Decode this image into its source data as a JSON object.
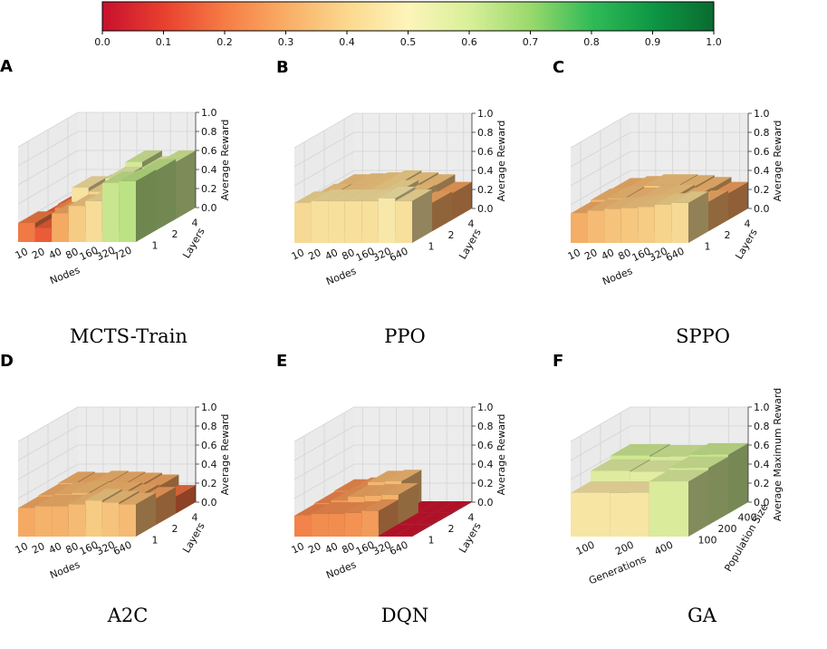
{
  "colorbar": {
    "ticks": [
      "0.0",
      "0.1",
      "0.2",
      "0.3",
      "0.4",
      "0.5",
      "0.6",
      "0.7",
      "0.8",
      "0.9",
      "1.0"
    ],
    "stops": [
      "#c8102e",
      "#e8402e",
      "#f67c45",
      "#f9ad65",
      "#fbd88e",
      "#fdf5b9",
      "#d8ef99",
      "#9ad96c",
      "#31bb57",
      "#0d9744",
      "#0a6b30"
    ]
  },
  "chart_data": [
    {
      "type": "bar3d",
      "letter": "A",
      "caption": "MCTS-Train",
      "xlabel": "Nodes",
      "ylabel": "Layers",
      "zlabel": "Average Reward",
      "xticks": [
        "10",
        "20",
        "40",
        "80",
        "160",
        "320",
        "720"
      ],
      "yticks": [
        "1",
        "2",
        "4"
      ],
      "zticks": [
        "0.0",
        "0.2",
        "0.4",
        "0.6",
        "0.8",
        "1.0"
      ],
      "zlim": [
        0,
        1
      ],
      "values": [
        [
          0.2,
          0.15,
          0.3,
          0.38,
          0.43,
          0.62,
          0.64
        ],
        [
          0.15,
          0.24,
          0.45,
          0.41,
          0.55,
          0.5,
          0.63
        ],
        [
          0.16,
          0.16,
          0.35,
          0.4,
          0.6,
          0.54,
          0.6
        ]
      ]
    },
    {
      "type": "bar3d",
      "letter": "B",
      "caption": "PPO",
      "xlabel": "Nodes",
      "ylabel": "Layers",
      "zlabel": "Average Reward",
      "xticks": [
        "10",
        "20",
        "40",
        "80",
        "160",
        "320",
        "640"
      ],
      "yticks": [
        "1",
        "2",
        "4"
      ],
      "zticks": [
        "0.0",
        "0.2",
        "0.4",
        "0.6",
        "0.8",
        "1.0"
      ],
      "zlim": [
        0,
        1
      ],
      "values": [
        [
          0.42,
          0.44,
          0.44,
          0.44,
          0.44,
          0.47,
          0.44
        ],
        [
          0.38,
          0.37,
          0.38,
          0.4,
          0.42,
          0.37,
          0.3
        ],
        [
          0.36,
          0.37,
          0.38,
          0.4,
          0.38,
          0.36,
          0.28
        ]
      ]
    },
    {
      "type": "bar3d",
      "letter": "C",
      "caption": "SPPO",
      "xlabel": "Nodes",
      "ylabel": "Layers",
      "zlabel": "Average Reward",
      "xticks": [
        "10",
        "20",
        "40",
        "80",
        "160",
        "320",
        "640"
      ],
      "yticks": [
        "1",
        "2",
        "4"
      ],
      "zticks": [
        "0.0",
        "0.2",
        "0.4",
        "0.6",
        "0.8",
        "1.0"
      ],
      "zlim": [
        0,
        1
      ],
      "values": [
        [
          0.31,
          0.34,
          0.36,
          0.37,
          0.38,
          0.4,
          0.42
        ],
        [
          0.33,
          0.35,
          0.34,
          0.36,
          0.37,
          0.34,
          0.31
        ],
        [
          0.32,
          0.34,
          0.36,
          0.36,
          0.35,
          0.33,
          0.28
        ]
      ]
    },
    {
      "type": "bar3d",
      "letter": "D",
      "caption": "A2C",
      "xlabel": "Nodes",
      "ylabel": "Layers",
      "zlabel": "Average Reward",
      "xticks": [
        "10",
        "20",
        "40",
        "80",
        "160",
        "320",
        "640"
      ],
      "yticks": [
        "1",
        "2",
        "4"
      ],
      "zticks": [
        "0.0",
        "0.2",
        "0.4",
        "0.6",
        "0.8",
        "1.0"
      ],
      "zlim": [
        0,
        1
      ],
      "values": [
        [
          0.3,
          0.32,
          0.32,
          0.34,
          0.38,
          0.36,
          0.34
        ],
        [
          0.31,
          0.33,
          0.34,
          0.33,
          0.33,
          0.31,
          0.28
        ],
        [
          0.32,
          0.31,
          0.33,
          0.32,
          0.31,
          0.29,
          0.18
        ]
      ]
    },
    {
      "type": "bar3d",
      "letter": "E",
      "caption": "DQN",
      "xlabel": "Nodes",
      "ylabel": "Layers",
      "zlabel": "Average Reward",
      "xticks": [
        "10",
        "20",
        "40",
        "80",
        "160",
        "320",
        "640"
      ],
      "yticks": [
        "1",
        "2",
        "4"
      ],
      "zticks": [
        "0.0",
        "0.2",
        "0.4",
        "0.6",
        "0.8",
        "1.0"
      ],
      "zlim": [
        0,
        1
      ],
      "values": [
        [
          0.22,
          0.24,
          0.24,
          0.25,
          0.27,
          0.01,
          0.01
        ],
        [
          0.23,
          0.26,
          0.3,
          0.31,
          0.32,
          0.01,
          0.01
        ],
        [
          0.24,
          0.26,
          0.33,
          0.34,
          0.01,
          0.01,
          0.01
        ]
      ]
    },
    {
      "type": "bar3d",
      "letter": "F",
      "caption": "GA",
      "xlabel": "Generations",
      "ylabel": "Population Size",
      "zlabel": "Average Maximum Reward",
      "xticks": [
        "100",
        "200",
        "400"
      ],
      "yticks": [
        "100",
        "200",
        "400"
      ],
      "zticks": [
        "0.0",
        "0.2",
        "0.4",
        "0.6",
        "0.8",
        "1.0"
      ],
      "zlim": [
        0,
        1
      ],
      "values": [
        [
          0.46,
          0.46,
          0.58
        ],
        [
          0.57,
          0.56,
          0.6
        ],
        [
          0.61,
          0.6,
          0.62
        ]
      ]
    }
  ]
}
